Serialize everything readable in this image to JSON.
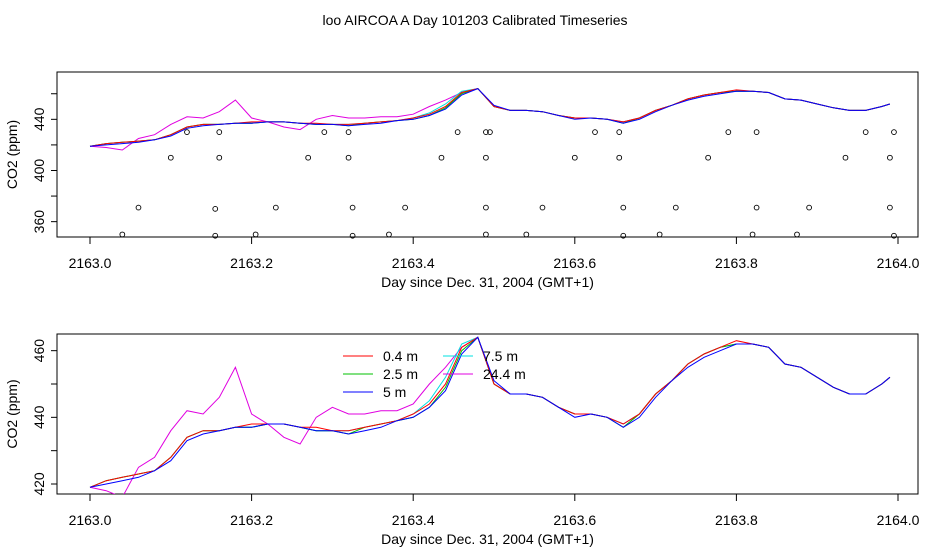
{
  "title": "loo AIRCOA A  Day 101203  Calibrated Timeseries",
  "chart_data": [
    {
      "type": "line",
      "xlabel": "Day since Dec. 31, 2004 (GMT+1)",
      "ylabel": "CO2 (ppm)",
      "xlim": [
        2163.0,
        2164.0
      ],
      "ylim": [
        348,
        477
      ],
      "xticks": [
        "2163.0",
        "2163.2",
        "2163.4",
        "2163.6",
        "2163.8",
        "2164.0"
      ],
      "xtick_values": [
        2163.0,
        2163.2,
        2163.4,
        2163.6,
        2163.8,
        2164.0
      ],
      "yticks": [
        "360",
        "400",
        "440"
      ],
      "ytick_values": [
        360,
        380,
        400,
        420,
        440,
        460
      ],
      "ytick_labeled": [
        360,
        400,
        440
      ],
      "legend": false,
      "points": {
        "x": [
          2163.04,
          2163.06,
          2163.1,
          2163.12,
          2163.155,
          2163.155,
          2163.16,
          2163.16,
          2163.205,
          2163.23,
          2163.27,
          2163.29,
          2163.32,
          2163.32,
          2163.325,
          2163.325,
          2163.37,
          2163.39,
          2163.435,
          2163.455,
          2163.49,
          2163.49,
          2163.49,
          2163.49,
          2163.495,
          2163.54,
          2163.56,
          2163.6,
          2163.625,
          2163.655,
          2163.655,
          2163.66,
          2163.66,
          2163.705,
          2163.725,
          2163.765,
          2163.79,
          2163.82,
          2163.825,
          2163.825,
          2163.875,
          2163.89,
          2163.935,
          2163.96,
          2163.99,
          2163.99,
          2163.995,
          2163.995
        ],
        "y": [
          350,
          371,
          410,
          430,
          349,
          370,
          410,
          430,
          350,
          371,
          410,
          430,
          410,
          430,
          371,
          349,
          350,
          371,
          410,
          430,
          350,
          371,
          410,
          430,
          430,
          350,
          371,
          410,
          430,
          410,
          430,
          371,
          349,
          350,
          371,
          410,
          430,
          350,
          371,
          430,
          350,
          371,
          410,
          430,
          371,
          410,
          430,
          349
        ]
      },
      "x": [
        2163.0,
        2163.02,
        2163.04,
        2163.06,
        2163.08,
        2163.1,
        2163.12,
        2163.14,
        2163.16,
        2163.18,
        2163.2,
        2163.22,
        2163.24,
        2163.26,
        2163.28,
        2163.3,
        2163.32,
        2163.34,
        2163.36,
        2163.38,
        2163.4,
        2163.42,
        2163.44,
        2163.46,
        2163.48,
        2163.5,
        2163.52,
        2163.54,
        2163.56,
        2163.58,
        2163.6,
        2163.62,
        2163.64,
        2163.66,
        2163.68,
        2163.7,
        2163.72,
        2163.74,
        2163.76,
        2163.78,
        2163.8,
        2163.82,
        2163.84,
        2163.86,
        2163.88,
        2163.9,
        2163.92,
        2163.94,
        2163.96,
        2163.98,
        2163.99
      ],
      "series": [
        {
          "name": "0.4 m",
          "color": "#ff0000",
          "values": [
            419,
            421,
            422,
            423,
            424,
            428,
            434,
            436,
            436,
            437,
            438,
            438,
            438,
            437,
            437,
            436,
            436,
            437,
            438,
            439,
            441,
            444,
            450,
            461,
            464,
            450,
            447,
            447,
            446,
            443,
            441,
            441,
            440,
            438,
            441,
            447,
            451,
            456,
            459,
            461,
            463,
            462,
            461,
            456,
            455,
            452,
            449,
            447,
            447,
            450,
            452
          ]
        },
        {
          "name": "2.5 m",
          "color": "#00c000",
          "values": [
            419,
            421,
            422,
            423,
            424,
            428,
            434,
            436,
            436,
            437,
            437,
            438,
            438,
            437,
            436,
            436,
            435,
            437,
            438,
            439,
            440,
            443,
            449,
            460,
            464,
            450,
            447,
            447,
            446,
            443,
            441,
            441,
            440,
            437,
            441,
            447,
            451,
            456,
            459,
            461,
            462,
            462,
            461,
            456,
            455,
            452,
            449,
            447,
            447,
            450,
            452
          ]
        },
        {
          "name": "5 m",
          "color": "#0000ff",
          "values": [
            419,
            420,
            421,
            422,
            424,
            427,
            433,
            435,
            436,
            437,
            437,
            438,
            438,
            437,
            436,
            436,
            435,
            436,
            437,
            439,
            440,
            443,
            448,
            459,
            464,
            451,
            447,
            447,
            446,
            443,
            440,
            441,
            440,
            437,
            440,
            446,
            451,
            455,
            458,
            460,
            462,
            462,
            461,
            456,
            455,
            452,
            449,
            447,
            447,
            450,
            452
          ]
        },
        {
          "name": "7.5 m",
          "color": "#00e0e0",
          "values": [
            419,
            421,
            422,
            423,
            424,
            428,
            434,
            436,
            436,
            437,
            437,
            438,
            438,
            437,
            436,
            436,
            436,
            437,
            438,
            439,
            441,
            445,
            452,
            462,
            464,
            450,
            447,
            447,
            446,
            443,
            441,
            441,
            440,
            438,
            441,
            447,
            451,
            456,
            459,
            461,
            462,
            462,
            461,
            456,
            455,
            452,
            449,
            447,
            447,
            450,
            452
          ]
        },
        {
          "name": "24.4 m",
          "color": "#e000e0",
          "values": [
            419,
            418,
            416,
            425,
            428,
            436,
            442,
            441,
            446,
            455,
            441,
            438,
            434,
            432,
            440,
            443,
            441,
            441,
            442,
            442,
            444,
            450,
            455,
            461,
            464,
            450,
            447,
            447,
            446,
            443,
            441,
            441,
            440,
            438,
            441,
            447,
            451,
            456,
            459,
            461,
            462,
            462,
            461,
            456,
            455,
            452,
            449,
            447,
            447,
            450,
            452
          ]
        }
      ]
    },
    {
      "type": "line",
      "xlabel": "Day since Dec. 31, 2004 (GMT+1)",
      "ylabel": "CO2 (ppm)",
      "xlim": [
        2163.0,
        2164.0
      ],
      "ylim": [
        417,
        465
      ],
      "xticks": [
        "2163.0",
        "2163.2",
        "2163.4",
        "2163.6",
        "2163.8",
        "2164.0"
      ],
      "xtick_values": [
        2163.0,
        2163.2,
        2163.4,
        2163.6,
        2163.8,
        2164.0
      ],
      "yticks": [
        "420",
        "440",
        "460"
      ],
      "ytick_values": [
        420,
        430,
        440,
        450,
        460
      ],
      "ytick_labeled": [
        420,
        440,
        460
      ],
      "legend": true,
      "legend_items": [
        {
          "label": "0.4 m",
          "color": "#ff0000"
        },
        {
          "label": "2.5 m",
          "color": "#00c000"
        },
        {
          "label": "5 m",
          "color": "#0000ff"
        },
        {
          "label": "7.5 m",
          "color": "#00e0e0"
        },
        {
          "label": "24.4 m",
          "color": "#e000e0"
        }
      ],
      "x": [
        2163.0,
        2163.02,
        2163.04,
        2163.06,
        2163.08,
        2163.1,
        2163.12,
        2163.14,
        2163.16,
        2163.18,
        2163.2,
        2163.22,
        2163.24,
        2163.26,
        2163.28,
        2163.3,
        2163.32,
        2163.34,
        2163.36,
        2163.38,
        2163.4,
        2163.42,
        2163.44,
        2163.46,
        2163.48,
        2163.5,
        2163.52,
        2163.54,
        2163.56,
        2163.58,
        2163.6,
        2163.62,
        2163.64,
        2163.66,
        2163.68,
        2163.7,
        2163.72,
        2163.74,
        2163.76,
        2163.78,
        2163.8,
        2163.82,
        2163.84,
        2163.86,
        2163.88,
        2163.9,
        2163.92,
        2163.94,
        2163.96,
        2163.98,
        2163.99
      ],
      "series": [
        {
          "name": "0.4 m",
          "color": "#ff0000",
          "values": [
            419,
            421,
            422,
            423,
            424,
            428,
            434,
            436,
            436,
            437,
            438,
            438,
            438,
            437,
            437,
            436,
            436,
            437,
            438,
            439,
            441,
            444,
            450,
            461,
            464,
            450,
            447,
            447,
            446,
            443,
            441,
            441,
            440,
            438,
            441,
            447,
            451,
            456,
            459,
            461,
            463,
            462,
            461,
            456,
            455,
            452,
            449,
            447,
            447,
            450,
            452
          ]
        },
        {
          "name": "2.5 m",
          "color": "#00c000",
          "values": [
            419,
            421,
            422,
            423,
            424,
            428,
            434,
            436,
            436,
            437,
            437,
            438,
            438,
            437,
            436,
            436,
            435,
            437,
            438,
            439,
            440,
            443,
            449,
            460,
            464,
            450,
            447,
            447,
            446,
            443,
            441,
            441,
            440,
            437,
            441,
            447,
            451,
            456,
            459,
            461,
            462,
            462,
            461,
            456,
            455,
            452,
            449,
            447,
            447,
            450,
            452
          ]
        },
        {
          "name": "5 m",
          "color": "#0000ff",
          "values": [
            419,
            420,
            421,
            422,
            424,
            427,
            433,
            435,
            436,
            437,
            437,
            438,
            438,
            437,
            436,
            436,
            435,
            436,
            437,
            439,
            440,
            443,
            448,
            459,
            464,
            451,
            447,
            447,
            446,
            443,
            440,
            441,
            440,
            437,
            440,
            446,
            451,
            455,
            458,
            460,
            462,
            462,
            461,
            456,
            455,
            452,
            449,
            447,
            447,
            450,
            452
          ]
        },
        {
          "name": "7.5 m",
          "color": "#00e0e0",
          "values": [
            419,
            421,
            422,
            423,
            424,
            428,
            434,
            436,
            436,
            437,
            437,
            438,
            438,
            437,
            436,
            436,
            436,
            437,
            438,
            439,
            441,
            445,
            452,
            462,
            464,
            450,
            447,
            447,
            446,
            443,
            441,
            441,
            440,
            438,
            441,
            447,
            451,
            456,
            459,
            461,
            462,
            462,
            461,
            456,
            455,
            452,
            449,
            447,
            447,
            450,
            452
          ]
        },
        {
          "name": "24.4 m",
          "color": "#e000e0",
          "values": [
            419,
            418,
            416,
            425,
            428,
            436,
            442,
            441,
            446,
            455,
            441,
            438,
            434,
            432,
            440,
            443,
            441,
            441,
            442,
            442,
            444,
            450,
            455,
            461,
            464,
            450,
            447,
            447,
            446,
            443,
            441,
            441,
            440,
            438,
            441,
            447,
            451,
            456,
            459,
            461,
            462,
            462,
            461,
            456,
            455,
            452,
            449,
            447,
            447,
            450,
            452
          ]
        }
      ]
    }
  ]
}
